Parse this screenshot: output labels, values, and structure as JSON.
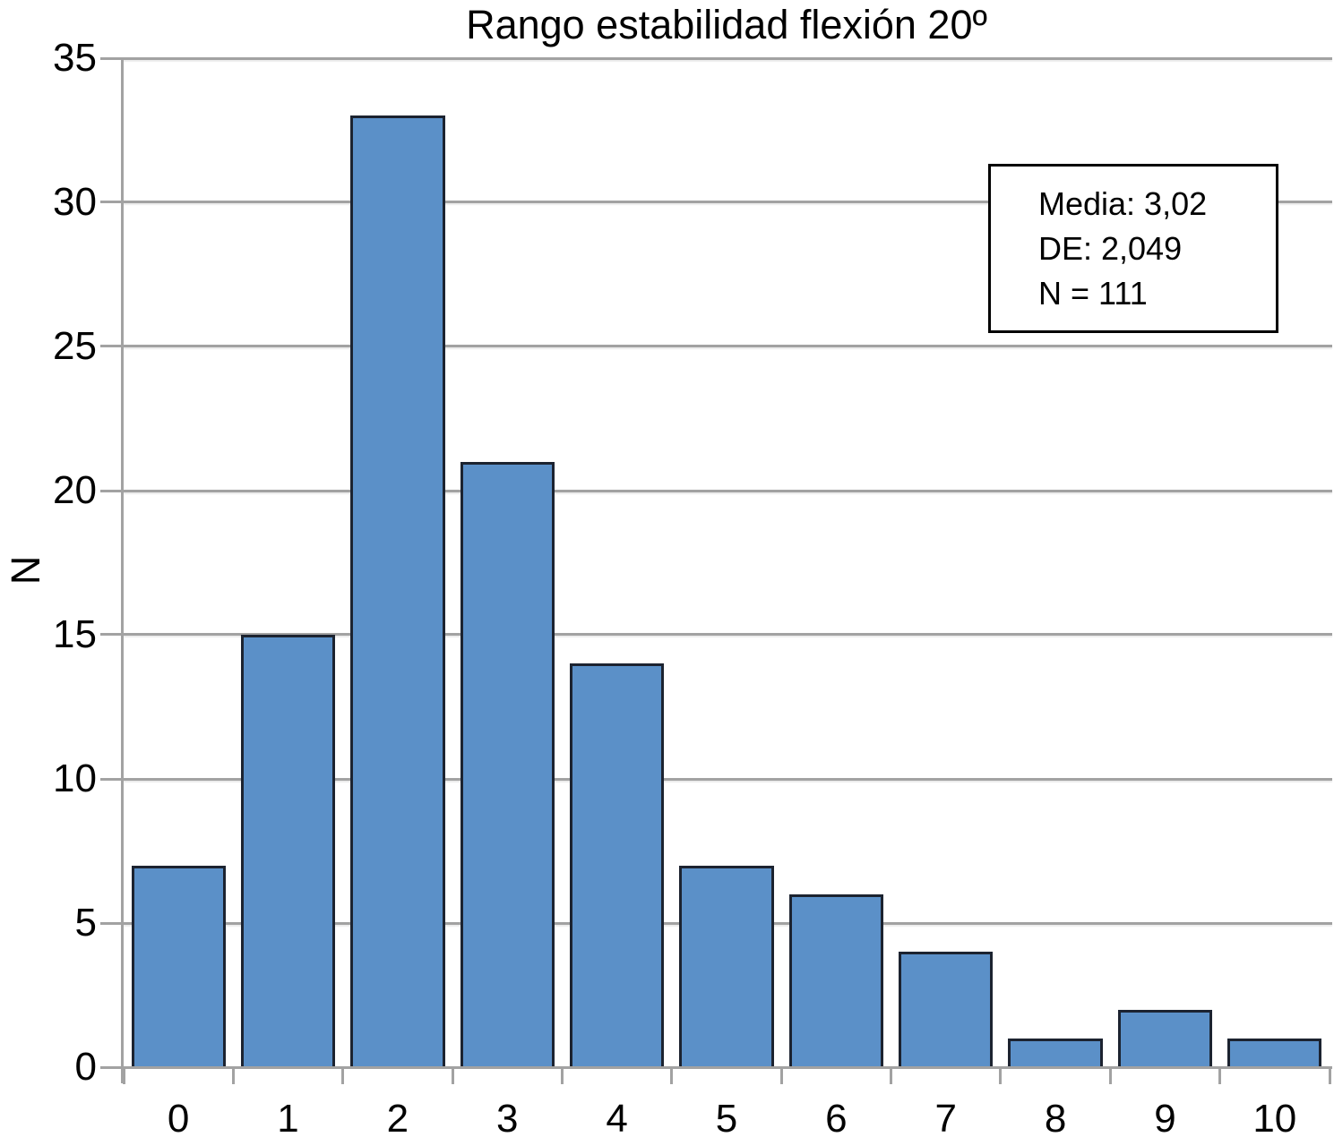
{
  "chart_data": {
    "type": "bar",
    "title": "Rango estabilidad flexión 20º",
    "xlabel": "",
    "ylabel": "N",
    "categories": [
      "0",
      "1",
      "2",
      "3",
      "4",
      "5",
      "6",
      "7",
      "8",
      "9",
      "10"
    ],
    "values": [
      7,
      15,
      33,
      21,
      14,
      7,
      6,
      4,
      1,
      2,
      1
    ],
    "ylim": [
      0,
      35
    ],
    "ytick_step": 5,
    "yticks": [
      0,
      5,
      10,
      15,
      20,
      25,
      30,
      35
    ],
    "grid": true,
    "legend": "none",
    "colors": {
      "bar_fill": "#5b90c8",
      "bar_border": "#1c2330",
      "axis": "#a2a2a2",
      "gridline": "#a2a2a2",
      "text": "#000000",
      "background": "#ffffff"
    }
  },
  "annotation_box": {
    "lines": [
      "Media: 3,02",
      "DE: 2,049",
      "N = 111"
    ]
  }
}
